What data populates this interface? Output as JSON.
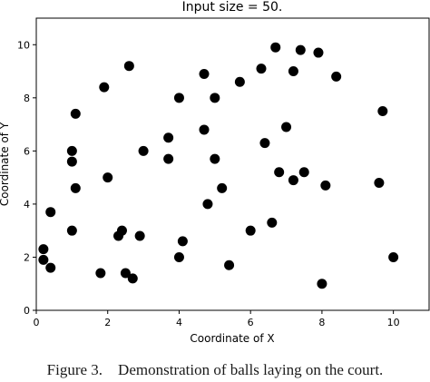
{
  "figure": {
    "caption": "Figure 3.    Demonstration of balls laying on the court."
  },
  "chart_data": {
    "type": "scatter",
    "title": "Input size = 50.",
    "xlabel": "Coordinate of X",
    "ylabel": "Coordinate of Y",
    "xlim": [
      0,
      11
    ],
    "ylim": [
      0,
      11
    ],
    "xticks": [
      "0",
      "2",
      "4",
      "6",
      "8",
      "10"
    ],
    "yticks": [
      "0",
      "2",
      "4",
      "6",
      "8",
      "10"
    ],
    "grid": false,
    "marker_color": "#000000",
    "points": [
      {
        "x": 0.2,
        "y": 1.9
      },
      {
        "x": 0.2,
        "y": 2.3
      },
      {
        "x": 0.4,
        "y": 1.6
      },
      {
        "x": 0.4,
        "y": 3.7
      },
      {
        "x": 1.0,
        "y": 3.0
      },
      {
        "x": 1.1,
        "y": 4.6
      },
      {
        "x": 1.0,
        "y": 5.6
      },
      {
        "x": 1.0,
        "y": 6.0
      },
      {
        "x": 1.1,
        "y": 7.4
      },
      {
        "x": 1.9,
        "y": 8.4
      },
      {
        "x": 2.0,
        "y": 5.0
      },
      {
        "x": 1.8,
        "y": 1.4
      },
      {
        "x": 2.3,
        "y": 2.8
      },
      {
        "x": 2.4,
        "y": 3.0
      },
      {
        "x": 2.5,
        "y": 1.4
      },
      {
        "x": 2.7,
        "y": 1.2
      },
      {
        "x": 2.9,
        "y": 2.8
      },
      {
        "x": 2.6,
        "y": 9.2
      },
      {
        "x": 3.0,
        "y": 6.0
      },
      {
        "x": 3.7,
        "y": 6.5
      },
      {
        "x": 3.7,
        "y": 5.7
      },
      {
        "x": 4.0,
        "y": 8.0
      },
      {
        "x": 4.0,
        "y": 2.0
      },
      {
        "x": 4.1,
        "y": 2.6
      },
      {
        "x": 4.7,
        "y": 6.8
      },
      {
        "x": 4.7,
        "y": 8.9
      },
      {
        "x": 4.8,
        "y": 4.0
      },
      {
        "x": 5.0,
        "y": 8.0
      },
      {
        "x": 5.0,
        "y": 5.7
      },
      {
        "x": 5.2,
        "y": 4.6
      },
      {
        "x": 5.4,
        "y": 1.7
      },
      {
        "x": 5.7,
        "y": 8.6
      },
      {
        "x": 6.0,
        "y": 3.0
      },
      {
        "x": 6.3,
        "y": 9.1
      },
      {
        "x": 6.4,
        "y": 6.3
      },
      {
        "x": 6.6,
        "y": 3.3
      },
      {
        "x": 6.7,
        "y": 9.9
      },
      {
        "x": 6.8,
        "y": 5.2
      },
      {
        "x": 7.0,
        "y": 6.9
      },
      {
        "x": 7.2,
        "y": 9.0
      },
      {
        "x": 7.2,
        "y": 4.9
      },
      {
        "x": 7.4,
        "y": 9.8
      },
      {
        "x": 7.5,
        "y": 5.2
      },
      {
        "x": 7.9,
        "y": 9.7
      },
      {
        "x": 8.0,
        "y": 1.0
      },
      {
        "x": 8.1,
        "y": 4.7
      },
      {
        "x": 8.4,
        "y": 8.8
      },
      {
        "x": 9.6,
        "y": 4.8
      },
      {
        "x": 9.7,
        "y": 7.5
      },
      {
        "x": 10.0,
        "y": 2.0
      }
    ]
  }
}
